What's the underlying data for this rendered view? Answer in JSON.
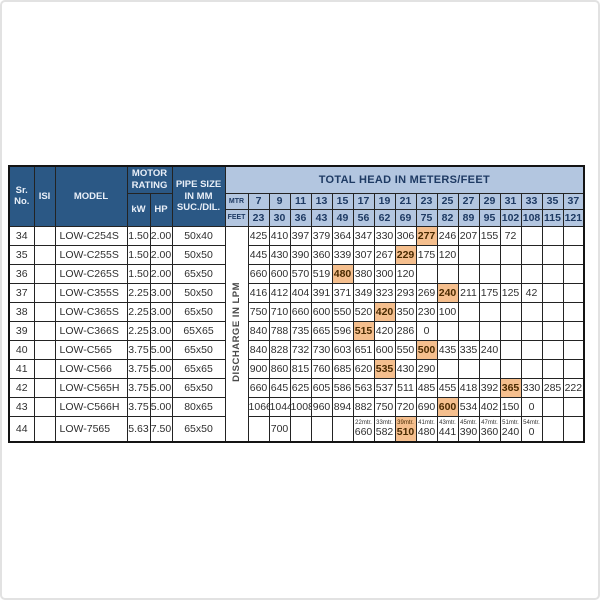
{
  "colors": {
    "header_dark_blue": "#2b5885",
    "header_light_blue": "#b3c6e0",
    "highlight_orange": "#f5bf8e"
  },
  "table": {
    "headers": {
      "sr_no": "Sr. No.",
      "isi": "ISI",
      "model": "MODEL",
      "motor_rating": "MOTOR RATING",
      "kw": "kW",
      "hp": "HP",
      "pipe_size": "PIPE SIZE IN MM SUC./DIL.",
      "total_head": "TOTAL HEAD IN METERS/FEET",
      "mtr": "MTR",
      "feet": "FEET",
      "discharge": "DISCHARGE IN LPM"
    },
    "head_mtr": [
      "7",
      "9",
      "11",
      "13",
      "15",
      "17",
      "19",
      "21",
      "23",
      "25",
      "27",
      "29",
      "31",
      "33",
      "35",
      "37"
    ],
    "head_feet": [
      "23",
      "30",
      "36",
      "43",
      "49",
      "56",
      "62",
      "69",
      "75",
      "82",
      "89",
      "95",
      "102",
      "108",
      "115",
      "121"
    ],
    "rows": [
      {
        "sr": "34",
        "isi": "",
        "model": "LOW-C254S",
        "kw": "1.50",
        "hp": "2.00",
        "pipe": "50x40",
        "highlight": 8,
        "values": [
          "425",
          "410",
          "397",
          "379",
          "364",
          "347",
          "330",
          "306",
          "277",
          "246",
          "207",
          "155",
          "72",
          "",
          "",
          ""
        ]
      },
      {
        "sr": "35",
        "isi": "",
        "model": "LOW-C255S",
        "kw": "1.50",
        "hp": "2.00",
        "pipe": "50x50",
        "highlight": 7,
        "values": [
          "445",
          "430",
          "390",
          "360",
          "339",
          "307",
          "267",
          "229",
          "175",
          "120",
          "",
          "",
          "",
          "",
          "",
          ""
        ]
      },
      {
        "sr": "36",
        "isi": "",
        "model": "LOW-C265S",
        "kw": "1.50",
        "hp": "2.00",
        "pipe": "65x50",
        "highlight": 4,
        "values": [
          "660",
          "600",
          "570",
          "519",
          "480",
          "380",
          "300",
          "120",
          "",
          "",
          "",
          "",
          "",
          "",
          "",
          ""
        ]
      },
      {
        "sr": "37",
        "isi": "",
        "model": "LOW-C355S",
        "kw": "2.25",
        "hp": "3.00",
        "pipe": "50x50",
        "highlight": 9,
        "values": [
          "416",
          "412",
          "404",
          "391",
          "371",
          "349",
          "323",
          "293",
          "269",
          "240",
          "211",
          "175",
          "125",
          "42",
          "",
          ""
        ]
      },
      {
        "sr": "38",
        "isi": "",
        "model": "LOW-C365S",
        "kw": "2.25",
        "hp": "3.00",
        "pipe": "65x50",
        "highlight": 6,
        "values": [
          "750",
          "710",
          "660",
          "600",
          "550",
          "520",
          "420",
          "350",
          "230",
          "100",
          "",
          "",
          "",
          "",
          "",
          ""
        ]
      },
      {
        "sr": "39",
        "isi": "",
        "model": "LOW-C366S",
        "kw": "2.25",
        "hp": "3.00",
        "pipe": "65X65",
        "highlight": 5,
        "values": [
          "840",
          "788",
          "735",
          "665",
          "596",
          "515",
          "420",
          "286",
          "0",
          "",
          "",
          "",
          "",
          "",
          "",
          ""
        ]
      },
      {
        "sr": "40",
        "isi": "",
        "model": "LOW-C565",
        "kw": "3.75",
        "hp": "5.00",
        "pipe": "65x50",
        "highlight": 8,
        "values": [
          "840",
          "828",
          "732",
          "730",
          "603",
          "651",
          "600",
          "550",
          "500",
          "435",
          "335",
          "240",
          "",
          "",
          "",
          ""
        ]
      },
      {
        "sr": "41",
        "isi": "",
        "model": "LOW-C566",
        "kw": "3.75",
        "hp": "5.00",
        "pipe": "65x65",
        "highlight": 6,
        "values": [
          "900",
          "860",
          "815",
          "760",
          "685",
          "620",
          "535",
          "430",
          "290",
          "",
          "",
          "",
          "",
          "",
          "",
          ""
        ]
      },
      {
        "sr": "42",
        "isi": "",
        "model": "LOW-C565H",
        "kw": "3.75",
        "hp": "5.00",
        "pipe": "65x50",
        "highlight": 12,
        "values": [
          "660",
          "645",
          "625",
          "605",
          "586",
          "563",
          "537",
          "511",
          "485",
          "455",
          "418",
          "392",
          "365",
          "330",
          "285",
          "222"
        ]
      },
      {
        "sr": "43",
        "isi": "",
        "model": "LOW-C566H",
        "kw": "3.75",
        "hp": "5.00",
        "pipe": "80x65",
        "highlight": 9,
        "values": [
          "1066",
          "1044",
          "1008",
          "960",
          "894",
          "882",
          "750",
          "720",
          "690",
          "600",
          "534",
          "402",
          "150",
          "0",
          "",
          ""
        ]
      },
      {
        "sr": "44",
        "isi": "",
        "model": "LOW-7565",
        "kw": "5.63",
        "hp": "7.50",
        "pipe": "65x50",
        "highlight": 7,
        "values": [
          "",
          "700",
          "",
          "",
          "",
          {
            "sub": "22mtr.",
            "v": "660"
          },
          {
            "sub": "33mtr.",
            "v": "582"
          },
          {
            "sub": "39mtr.",
            "v": "510"
          },
          {
            "sub": "41mtr.",
            "v": "480"
          },
          {
            "sub": "43mtr.",
            "v": "441"
          },
          {
            "sub": "45mtr.",
            "v": "390"
          },
          {
            "sub": "47mtr.",
            "v": "360"
          },
          {
            "sub": "51mtr.",
            "v": "240"
          },
          {
            "sub": "54mtr.",
            "v": "0"
          },
          "",
          ""
        ]
      }
    ]
  }
}
